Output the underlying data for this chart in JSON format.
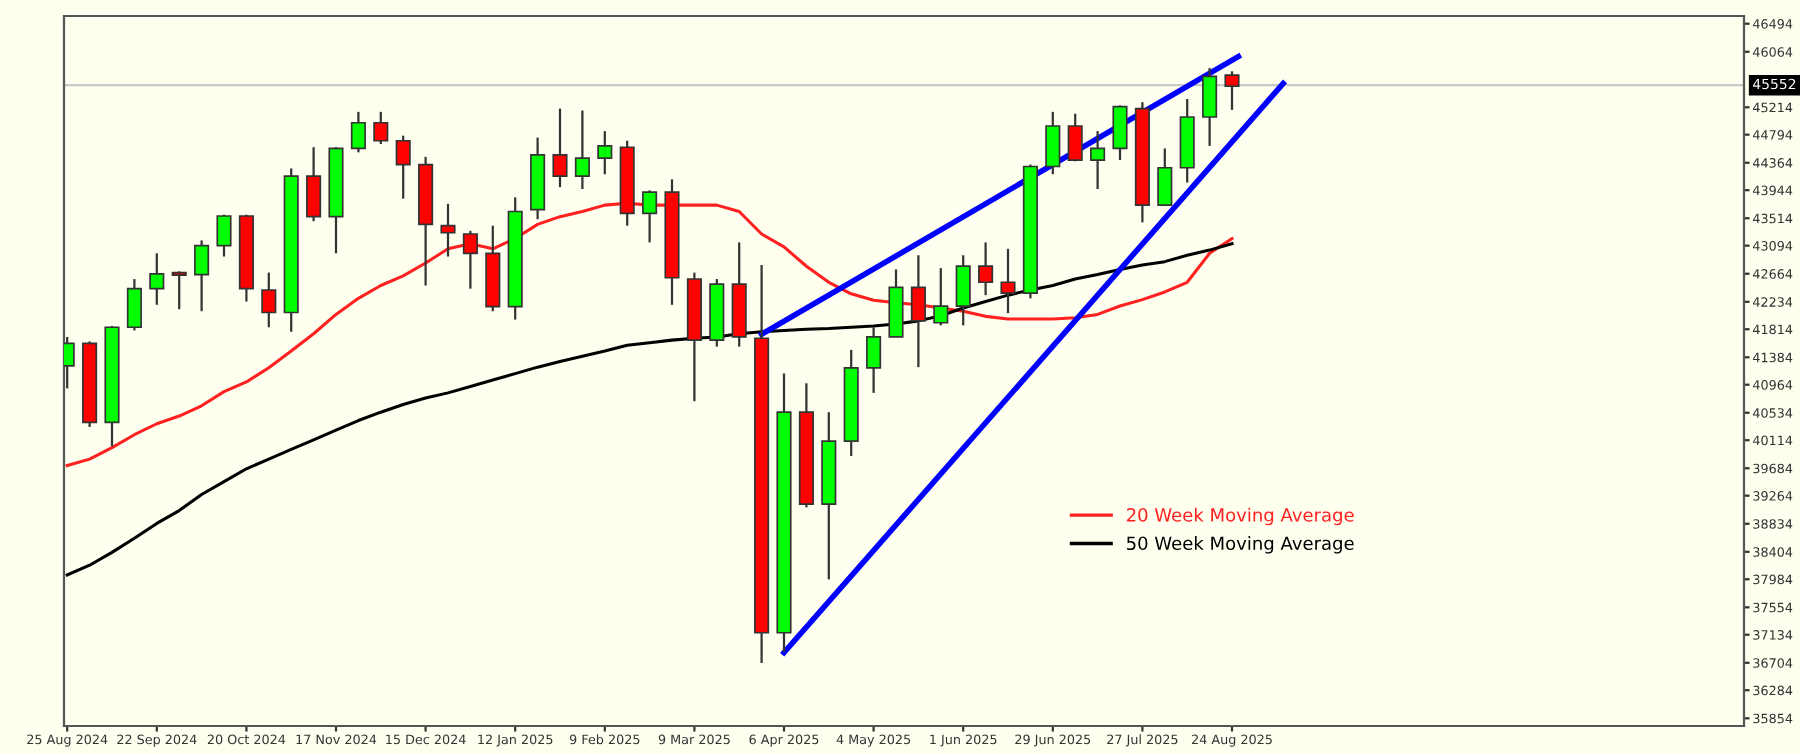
{
  "chart_data": {
    "type": "candlestick",
    "x": [
      "2024-08-25",
      "2024-09-01",
      "2024-09-08",
      "2024-09-15",
      "2024-09-22",
      "2024-09-29",
      "2024-10-06",
      "2024-10-13",
      "2024-10-20",
      "2024-10-27",
      "2024-11-03",
      "2024-11-10",
      "2024-11-17",
      "2024-11-24",
      "2024-12-01",
      "2024-12-08",
      "2024-12-15",
      "2024-12-22",
      "2024-12-29",
      "2025-01-05",
      "2025-01-12",
      "2025-01-19",
      "2025-01-26",
      "2025-02-02",
      "2025-02-09",
      "2025-02-16",
      "2025-02-23",
      "2025-03-02",
      "2025-03-09",
      "2025-03-16",
      "2025-03-23",
      "2025-03-30",
      "2025-04-06",
      "2025-04-13",
      "2025-04-20",
      "2025-04-27",
      "2025-05-04",
      "2025-05-11",
      "2025-05-18",
      "2025-05-25",
      "2025-06-01",
      "2025-06-08",
      "2025-06-15",
      "2025-06-22",
      "2025-06-29",
      "2025-07-06",
      "2025-07-13",
      "2025-07-20",
      "2025-07-27",
      "2025-08-03",
      "2025-08-10",
      "2025-08-17",
      "2025-08-24"
    ],
    "ohlc": [
      [
        41252,
        41696,
        40908,
        41597
      ],
      [
        41597,
        41627,
        40317,
        40386
      ],
      [
        40386,
        41863,
        40021,
        41844
      ],
      [
        41844,
        42582,
        41794,
        42435
      ],
      [
        42435,
        42977,
        42188,
        42661
      ],
      [
        42681,
        42701,
        42120,
        42642
      ],
      [
        42651,
        43174,
        42090,
        43095
      ],
      [
        43095,
        43568,
        42927,
        43548
      ],
      [
        43548,
        43568,
        42238,
        42435
      ],
      [
        42415,
        42681,
        41844,
        42070
      ],
      [
        42070,
        44277,
        41775,
        44159
      ],
      [
        44159,
        44602,
        43469,
        43538
      ],
      [
        43538,
        44602,
        42977,
        44583
      ],
      [
        44583,
        45144,
        44523,
        44977
      ],
      [
        44977,
        45144,
        44651,
        44701
      ],
      [
        44701,
        44779,
        43814,
        44336
      ],
      [
        44336,
        44454,
        42484,
        43420
      ],
      [
        43400,
        43735,
        42927,
        43292
      ],
      [
        43272,
        43321,
        42435,
        42977
      ],
      [
        42977,
        43400,
        42090,
        42159
      ],
      [
        42159,
        43834,
        41962,
        43617
      ],
      [
        43647,
        44750,
        43499,
        44484
      ],
      [
        44484,
        45193,
        43991,
        44159
      ],
      [
        44159,
        45164,
        43962,
        44435
      ],
      [
        44435,
        44849,
        44188,
        44622
      ],
      [
        44602,
        44701,
        43400,
        43588
      ],
      [
        43588,
        43942,
        43144,
        43913
      ],
      [
        43913,
        44110,
        42188,
        42602
      ],
      [
        42583,
        42681,
        40711,
        41647
      ],
      [
        41647,
        42583,
        41548,
        42504
      ],
      [
        42504,
        43144,
        41548,
        41696
      ],
      [
        41676,
        42799,
        36701,
        37164
      ],
      [
        37164,
        41135,
        36868,
        40543
      ],
      [
        40543,
        40986,
        39085,
        39135
      ],
      [
        39135,
        40543,
        37982,
        40100
      ],
      [
        40100,
        41498,
        39873,
        41223
      ],
      [
        41223,
        41844,
        40839,
        41696
      ],
      [
        41696,
        42730,
        41696,
        42455
      ],
      [
        42455,
        42947,
        41233,
        41942
      ],
      [
        41913,
        42750,
        41873,
        42169
      ],
      [
        42169,
        42947,
        41873,
        42780
      ],
      [
        42780,
        43144,
        42336,
        42533
      ],
      [
        42533,
        43046,
        42061,
        42366
      ],
      [
        42366,
        44336,
        42287,
        44307
      ],
      [
        44307,
        45144,
        44188,
        44927
      ],
      [
        44927,
        45115,
        44386,
        44405
      ],
      [
        44405,
        44849,
        43962,
        44583
      ],
      [
        44583,
        45243,
        44405,
        45223
      ],
      [
        45193,
        45292,
        43450,
        43716
      ],
      [
        43716,
        44583,
        43716,
        44287
      ],
      [
        44287,
        45341,
        44060,
        45065
      ],
      [
        45065,
        45814,
        44622,
        45686
      ],
      [
        45706,
        45765,
        45174,
        45538
      ]
    ],
    "colors": [
      "#00ff00",
      "#ff0000",
      "#00ff00",
      "#00ff00",
      "#00ff00",
      "#ff0000",
      "#00ff00",
      "#00ff00",
      "#ff0000",
      "#ff0000",
      "#00ff00",
      "#ff0000",
      "#00ff00",
      "#00ff00",
      "#ff0000",
      "#ff0000",
      "#ff0000",
      "#ff0000",
      "#ff0000",
      "#ff0000",
      "#00ff00",
      "#00ff00",
      "#ff0000",
      "#00ff00",
      "#00ff00",
      "#ff0000",
      "#00ff00",
      "#ff0000",
      "#ff0000",
      "#00ff00",
      "#ff0000",
      "#ff0000",
      "#00ff00",
      "#ff0000",
      "#00ff00",
      "#00ff00",
      "#00ff00",
      "#00ff00",
      "#ff0000",
      "#00ff00",
      "#00ff00",
      "#ff0000",
      "#ff0000",
      "#00ff00",
      "#00ff00",
      "#ff0000",
      "#00ff00",
      "#00ff00",
      "#ff0000",
      "#00ff00",
      "#00ff00",
      "#00ff00",
      "#ff0000"
    ],
    "series": [
      {
        "type": "line",
        "name": "20 Week Moving Average",
        "color": "#ff2020",
        "values": [
          39725,
          39824,
          40001,
          40198,
          40366,
          40484,
          40641,
          40858,
          41006,
          41223,
          41479,
          41745,
          42041,
          42287,
          42484,
          42632,
          42828,
          43046,
          43124,
          43046,
          43203,
          43420,
          43538,
          43617,
          43715,
          43745,
          43715,
          43715,
          43715,
          43715,
          43617,
          43272,
          43075,
          42779,
          42533,
          42356,
          42257,
          42218,
          42188,
          42139,
          42090,
          42011,
          41972,
          41972,
          41972,
          41991,
          42041,
          42169,
          42267,
          42385,
          42533,
          42977,
          43203
        ]
      },
      {
        "type": "line",
        "name": "50 Week Moving Average",
        "color": "#000000",
        "values": [
          38051,
          38199,
          38396,
          38612,
          38839,
          39036,
          39282,
          39479,
          39676,
          39824,
          39972,
          40119,
          40267,
          40415,
          40543,
          40661,
          40759,
          40839,
          40937,
          41036,
          41134,
          41233,
          41321,
          41400,
          41479,
          41568,
          41607,
          41647,
          41676,
          41696,
          41745,
          41775,
          41794,
          41814,
          41824,
          41844,
          41863,
          41893,
          41942,
          42021,
          42139,
          42238,
          42336,
          42415,
          42484,
          42583,
          42651,
          42730,
          42799,
          42849,
          42947,
          43026,
          43124
        ]
      },
      {
        "type": "line",
        "color": "#0000ff",
        "x": [
          "2025-03-30",
          "2025-08-26"
        ],
        "values": [
          41736,
          45992
        ]
      },
      {
        "type": "line",
        "color": "#0000ff",
        "x": [
          "2025-04-06",
          "2025-09-09"
        ],
        "values": [
          36859,
          45578
        ]
      }
    ],
    "xlim": [
      "2024-08-24",
      "2026-01-31"
    ],
    "xticks": [
      {
        "value": "2024-08-25",
        "label": "25 Aug 2024"
      },
      {
        "value": "2024-09-22",
        "label": "22 Sep 2024"
      },
      {
        "value": "2024-10-20",
        "label": "20 Oct 2024"
      },
      {
        "value": "2024-11-17",
        "label": "17 Nov 2024"
      },
      {
        "value": "2024-12-15",
        "label": "15 Dec 2024"
      },
      {
        "value": "2025-01-12",
        "label": "12 Jan 2025"
      },
      {
        "value": "2025-02-09",
        "label": "9 Feb 2025"
      },
      {
        "value": "2025-03-09",
        "label": "9 Mar 2025"
      },
      {
        "value": "2025-04-06",
        "label": "6 Apr 2025"
      },
      {
        "value": "2025-05-04",
        "label": "4 May 2025"
      },
      {
        "value": "2025-06-01",
        "label": "1 Jun 2025"
      },
      {
        "value": "2025-06-29",
        "label": "29 Jun 2025"
      },
      {
        "value": "2025-07-27",
        "label": "27 Jul 2025"
      },
      {
        "value": "2025-08-24",
        "label": "24 Aug 2025"
      }
    ],
    "ylim": [
      35736,
      46612
    ],
    "yticks": [
      35854,
      36284,
      36704,
      37134,
      37554,
      37984,
      38404,
      38834,
      39264,
      39684,
      40114,
      40534,
      40964,
      41384,
      41814,
      42234,
      42664,
      43094,
      43514,
      43944,
      44364,
      44794,
      45214,
      46064,
      46494
    ],
    "ref_lines": [
      {
        "axis": "y",
        "value": 45552,
        "label": "45552",
        "color": "#c8c8c8"
      }
    ],
    "legend": "bottom right",
    "grid": false
  }
}
